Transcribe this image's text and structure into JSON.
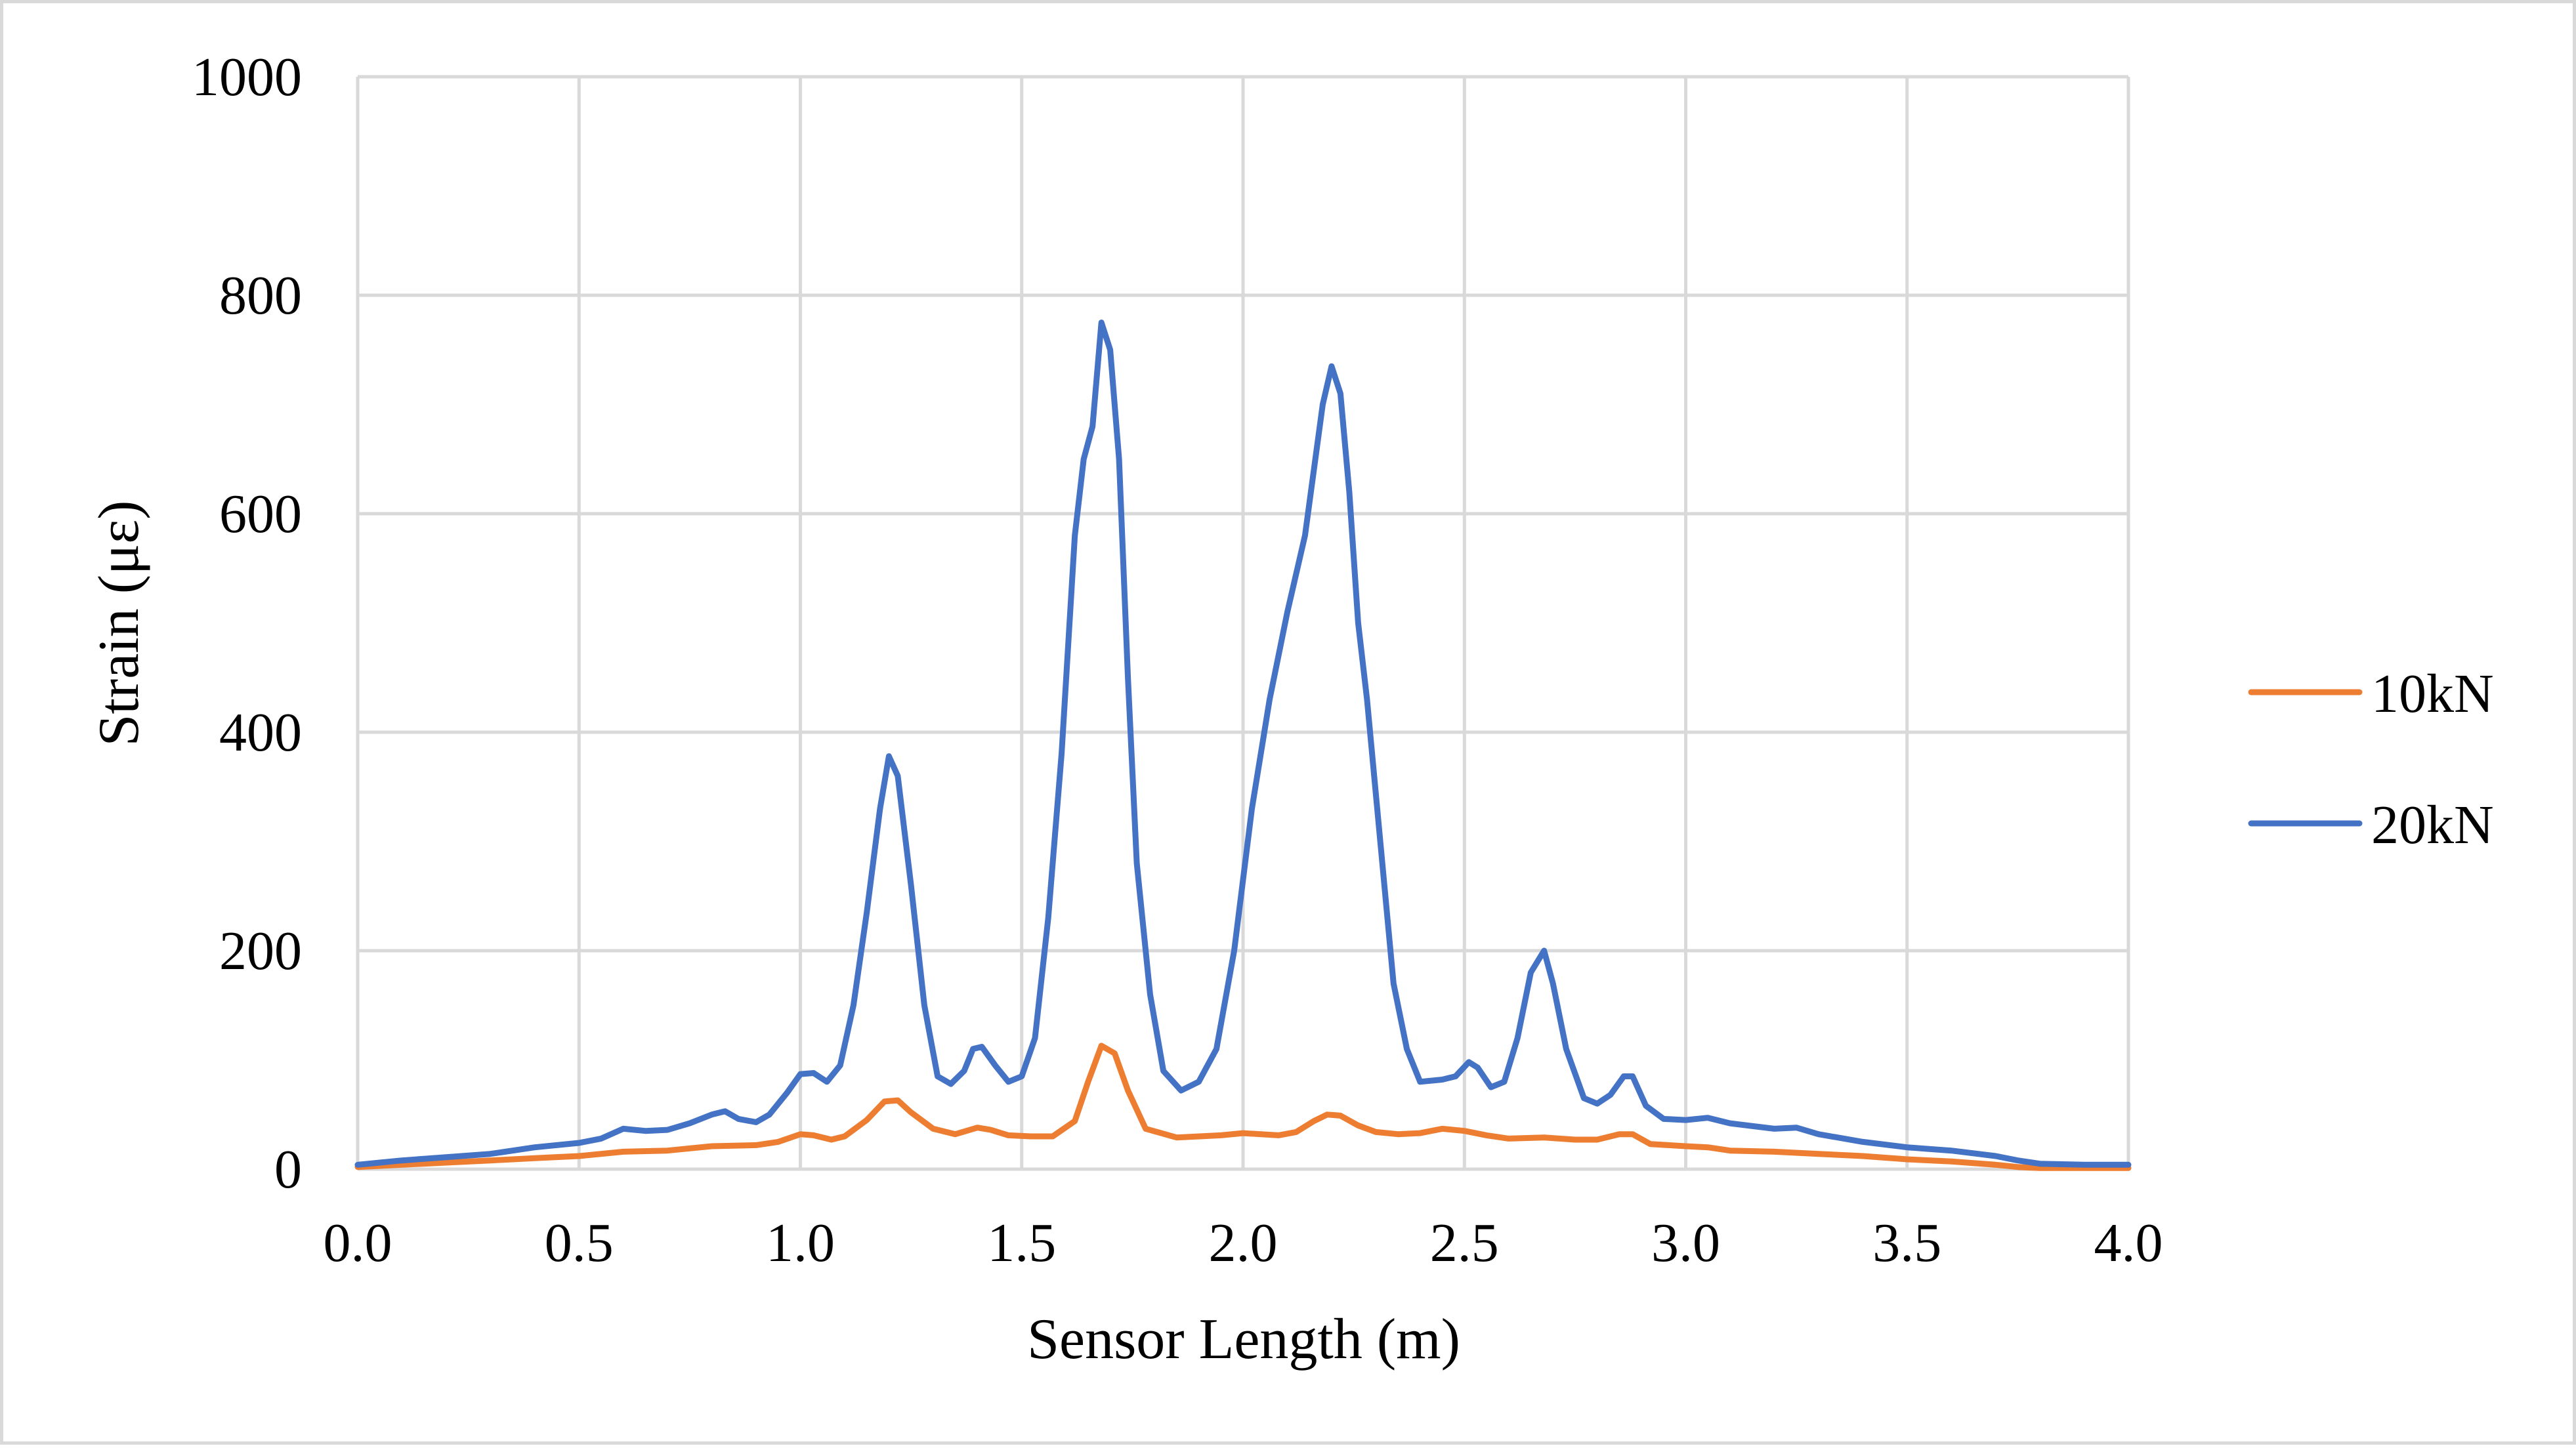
{
  "chart_data": {
    "type": "line",
    "title": "",
    "xlabel": "Sensor Length (m)",
    "ylabel": "Strain (με)",
    "xlim": [
      0,
      4
    ],
    "ylim": [
      0,
      1000
    ],
    "x_ticks": [
      "0.0",
      "0.5",
      "1.0",
      "1.5",
      "2.0",
      "2.5",
      "3.0",
      "3.5",
      "4.0"
    ],
    "y_ticks": [
      "0",
      "200",
      "400",
      "600",
      "800",
      "1000"
    ],
    "grid": true,
    "legend": "right",
    "series": [
      {
        "name": "10kN",
        "color": "#ed7d31",
        "points": [
          [
            0.0,
            2
          ],
          [
            0.05,
            3
          ],
          [
            0.1,
            4
          ],
          [
            0.2,
            6
          ],
          [
            0.3,
            8
          ],
          [
            0.4,
            10
          ],
          [
            0.5,
            12
          ],
          [
            0.6,
            16
          ],
          [
            0.7,
            17
          ],
          [
            0.8,
            21
          ],
          [
            0.9,
            22
          ],
          [
            0.95,
            25
          ],
          [
            1.0,
            32
          ],
          [
            1.03,
            31
          ],
          [
            1.07,
            27
          ],
          [
            1.1,
            30
          ],
          [
            1.15,
            45
          ],
          [
            1.19,
            62
          ],
          [
            1.22,
            63
          ],
          [
            1.25,
            52
          ],
          [
            1.3,
            37
          ],
          [
            1.35,
            32
          ],
          [
            1.4,
            38
          ],
          [
            1.43,
            36
          ],
          [
            1.47,
            31
          ],
          [
            1.52,
            30
          ],
          [
            1.57,
            30
          ],
          [
            1.62,
            44
          ],
          [
            1.65,
            80
          ],
          [
            1.68,
            113
          ],
          [
            1.71,
            106
          ],
          [
            1.74,
            72
          ],
          [
            1.78,
            37
          ],
          [
            1.85,
            29
          ],
          [
            1.95,
            31
          ],
          [
            2.0,
            33
          ],
          [
            2.08,
            31
          ],
          [
            2.12,
            34
          ],
          [
            2.16,
            44
          ],
          [
            2.19,
            50
          ],
          [
            2.22,
            49
          ],
          [
            2.26,
            40
          ],
          [
            2.3,
            34
          ],
          [
            2.35,
            32
          ],
          [
            2.4,
            33
          ],
          [
            2.45,
            37
          ],
          [
            2.5,
            35
          ],
          [
            2.55,
            31
          ],
          [
            2.6,
            28
          ],
          [
            2.68,
            29
          ],
          [
            2.75,
            27
          ],
          [
            2.8,
            27
          ],
          [
            2.85,
            32
          ],
          [
            2.88,
            32
          ],
          [
            2.92,
            23
          ],
          [
            3.0,
            21
          ],
          [
            3.05,
            20
          ],
          [
            3.1,
            17
          ],
          [
            3.2,
            16
          ],
          [
            3.3,
            14
          ],
          [
            3.4,
            12
          ],
          [
            3.5,
            9
          ],
          [
            3.6,
            7
          ],
          [
            3.7,
            4
          ],
          [
            3.75,
            2
          ],
          [
            3.8,
            1
          ],
          [
            3.9,
            1
          ],
          [
            4.0,
            1
          ]
        ]
      },
      {
        "name": "20kN",
        "color": "#4472c4",
        "points": [
          [
            0.0,
            4
          ],
          [
            0.05,
            6
          ],
          [
            0.1,
            8
          ],
          [
            0.2,
            11
          ],
          [
            0.3,
            14
          ],
          [
            0.4,
            20
          ],
          [
            0.5,
            24
          ],
          [
            0.55,
            28
          ],
          [
            0.6,
            37
          ],
          [
            0.65,
            35
          ],
          [
            0.7,
            36
          ],
          [
            0.75,
            42
          ],
          [
            0.8,
            50
          ],
          [
            0.83,
            53
          ],
          [
            0.86,
            46
          ],
          [
            0.9,
            43
          ],
          [
            0.93,
            50
          ],
          [
            0.97,
            70
          ],
          [
            1.0,
            87
          ],
          [
            1.03,
            88
          ],
          [
            1.06,
            80
          ],
          [
            1.09,
            95
          ],
          [
            1.12,
            150
          ],
          [
            1.15,
            235
          ],
          [
            1.18,
            330
          ],
          [
            1.2,
            378
          ],
          [
            1.22,
            360
          ],
          [
            1.25,
            260
          ],
          [
            1.28,
            150
          ],
          [
            1.31,
            85
          ],
          [
            1.34,
            78
          ],
          [
            1.37,
            90
          ],
          [
            1.39,
            110
          ],
          [
            1.41,
            112
          ],
          [
            1.44,
            95
          ],
          [
            1.47,
            80
          ],
          [
            1.5,
            85
          ],
          [
            1.53,
            120
          ],
          [
            1.56,
            230
          ],
          [
            1.59,
            380
          ],
          [
            1.62,
            580
          ],
          [
            1.64,
            650
          ],
          [
            1.66,
            680
          ],
          [
            1.68,
            775
          ],
          [
            1.7,
            750
          ],
          [
            1.72,
            650
          ],
          [
            1.74,
            450
          ],
          [
            1.76,
            280
          ],
          [
            1.79,
            160
          ],
          [
            1.82,
            90
          ],
          [
            1.86,
            72
          ],
          [
            1.9,
            80
          ],
          [
            1.94,
            110
          ],
          [
            1.98,
            200
          ],
          [
            2.02,
            330
          ],
          [
            2.06,
            430
          ],
          [
            2.1,
            510
          ],
          [
            2.14,
            580
          ],
          [
            2.16,
            640
          ],
          [
            2.18,
            700
          ],
          [
            2.2,
            735
          ],
          [
            2.22,
            710
          ],
          [
            2.24,
            620
          ],
          [
            2.26,
            500
          ],
          [
            2.28,
            430
          ],
          [
            2.31,
            300
          ],
          [
            2.34,
            170
          ],
          [
            2.37,
            110
          ],
          [
            2.4,
            80
          ],
          [
            2.45,
            82
          ],
          [
            2.48,
            85
          ],
          [
            2.51,
            98
          ],
          [
            2.53,
            93
          ],
          [
            2.56,
            75
          ],
          [
            2.59,
            80
          ],
          [
            2.62,
            120
          ],
          [
            2.65,
            180
          ],
          [
            2.68,
            200
          ],
          [
            2.7,
            170
          ],
          [
            2.73,
            110
          ],
          [
            2.77,
            65
          ],
          [
            2.8,
            60
          ],
          [
            2.83,
            68
          ],
          [
            2.86,
            85
          ],
          [
            2.88,
            85
          ],
          [
            2.91,
            58
          ],
          [
            2.95,
            46
          ],
          [
            3.0,
            45
          ],
          [
            3.05,
            47
          ],
          [
            3.1,
            42
          ],
          [
            3.2,
            37
          ],
          [
            3.25,
            38
          ],
          [
            3.3,
            32
          ],
          [
            3.4,
            25
          ],
          [
            3.5,
            20
          ],
          [
            3.6,
            17
          ],
          [
            3.7,
            12
          ],
          [
            3.75,
            8
          ],
          [
            3.8,
            5
          ],
          [
            3.9,
            4
          ],
          [
            4.0,
            4
          ]
        ]
      }
    ]
  }
}
